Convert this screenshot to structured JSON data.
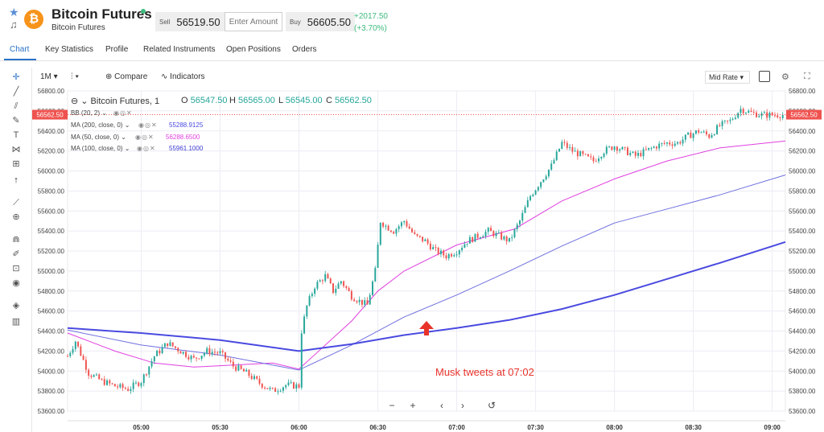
{
  "header": {
    "title": "Bitcoin Futures",
    "subtitle": "Bitcoin Futures",
    "coin_symbol": "₿",
    "sell_label": "Sell",
    "sell_price": "56519.50",
    "amount_placeholder": "Enter Amount",
    "buy_label": "Buy",
    "buy_price": "56605.50",
    "change_abs": "+2017.50",
    "change_pct": "(+3.70%)",
    "accent_color": "#2a72c8",
    "up_color": "#3dbb7e"
  },
  "tabs": [
    {
      "label": "Chart",
      "active": true
    },
    {
      "label": "Key Statistics"
    },
    {
      "label": "Profile"
    },
    {
      "label": "Related Instruments"
    },
    {
      "label": "Open Positions"
    },
    {
      "label": "Orders"
    }
  ],
  "toolbar": {
    "interval": "1M",
    "compare_label": "Compare",
    "indicators_label": "Indicators",
    "price_mode": "Mid Rate"
  },
  "left_tools": [
    "crosshair-icon",
    "trendline-icon",
    "pitchfork-icon",
    "brush-icon",
    "text-icon",
    "pattern-icon",
    "measure-icon",
    "arrow-up-icon",
    "ruler-icon",
    "zoom-icon",
    "magnet-icon",
    "lock-drawings-icon",
    "lock-icon",
    "eye-icon",
    "layers-icon",
    "trash-icon"
  ],
  "legend": {
    "symbol": "Bitcoin Futures, 1",
    "o_label": "O",
    "o": "56547.50",
    "h_label": "H",
    "h": "56565.00",
    "l_label": "L",
    "l": "56545.00",
    "c_label": "C",
    "c": "56562.50",
    "bb": "BB (20, 2)",
    "ma200": "MA (200, close, 0)",
    "ma200_val": "55288.9125",
    "ma50": "MA (50, close, 0)",
    "ma50_val": "56288.6500",
    "ma100": "MA (100, close, 0)",
    "ma100_val": "55961.1000"
  },
  "annotation": "Musk tweets at 07:02",
  "chart_data": {
    "type": "candlestick",
    "ylim": [
      53600,
      56800
    ],
    "y_ticks": [
      "53600.00",
      "53800.00",
      "54000.00",
      "54200.00",
      "54400.00",
      "54600.00",
      "54800.00",
      "55000.00",
      "55200.00",
      "55400.00",
      "55600.00",
      "55800.00",
      "56000.00",
      "56200.00",
      "56400.00",
      "56600.00",
      "56800.00"
    ],
    "x_ticks": [
      "05:00",
      "05:30",
      "06:00",
      "06:30",
      "07:00",
      "07:30",
      "08:00",
      "08:30",
      "09:00"
    ],
    "x_range_minutes": [
      272,
      545
    ],
    "last_price": "56562.50",
    "series": [
      {
        "name": "MA (50, close, 0)",
        "color": "#e040e0",
        "x": [
          272,
          290,
          305,
          320,
          335,
          350,
          360,
          380,
          390,
          400,
          420,
          442,
          460,
          480,
          500,
          520,
          545
        ],
        "values": [
          54380,
          54200,
          54080,
          54040,
          54060,
          54080,
          54020,
          54500,
          54800,
          55000,
          55260,
          55420,
          55700,
          55920,
          56100,
          56230,
          56300
        ]
      },
      {
        "name": "MA (100, close, 0)",
        "color": "#7070e0",
        "x": [
          272,
          300,
          330,
          360,
          380,
          400,
          420,
          440,
          460,
          480,
          500,
          520,
          545
        ],
        "values": [
          54410,
          54260,
          54160,
          54010,
          54260,
          54540,
          54760,
          55000,
          55250,
          55480,
          55620,
          55760,
          55960
        ]
      },
      {
        "name": "MA (200, close, 0)",
        "color": "#4a4ae0",
        "x": [
          272,
          300,
          330,
          360,
          380,
          400,
          420,
          440,
          460,
          480,
          500,
          520,
          545
        ],
        "values": [
          54430,
          54380,
          54310,
          54200,
          54270,
          54360,
          54430,
          54510,
          54620,
          54760,
          54920,
          55080,
          55290
        ]
      },
      {
        "name": "Price",
        "color": "#26a69a",
        "x": [
          272,
          275,
          280,
          285,
          290,
          295,
          300,
          305,
          310,
          315,
          320,
          325,
          330,
          335,
          340,
          345,
          350,
          355,
          360,
          361,
          363,
          366,
          370,
          373,
          376,
          380,
          383,
          386,
          389,
          391,
          393,
          396,
          400,
          404,
          408,
          412,
          416,
          420,
          424,
          428,
          432,
          436,
          440,
          444,
          448,
          452,
          456,
          460,
          464,
          468,
          472,
          476,
          480,
          484,
          488,
          492,
          496,
          500,
          504,
          508,
          512,
          516,
          520,
          524,
          528,
          532,
          536,
          540,
          544
        ],
        "values": [
          54150,
          54300,
          53980,
          53900,
          53850,
          53820,
          53900,
          54150,
          54280,
          54200,
          54120,
          54200,
          54180,
          54050,
          53980,
          53880,
          53800,
          53860,
          53850,
          54400,
          54650,
          54850,
          54950,
          54800,
          54900,
          54750,
          54700,
          54660,
          55000,
          55500,
          55450,
          55400,
          55500,
          55350,
          55300,
          55200,
          55150,
          55200,
          55300,
          55350,
          55400,
          55350,
          55300,
          55500,
          55750,
          55900,
          56050,
          56280,
          56200,
          56150,
          56100,
          56200,
          56250,
          56200,
          56150,
          56200,
          56250,
          56280,
          56280,
          56350,
          56400,
          56350,
          56450,
          56500,
          56620,
          56580,
          56560,
          56560,
          56562
        ]
      }
    ],
    "up_color": "#26a69a",
    "down_color": "#ef5350"
  }
}
